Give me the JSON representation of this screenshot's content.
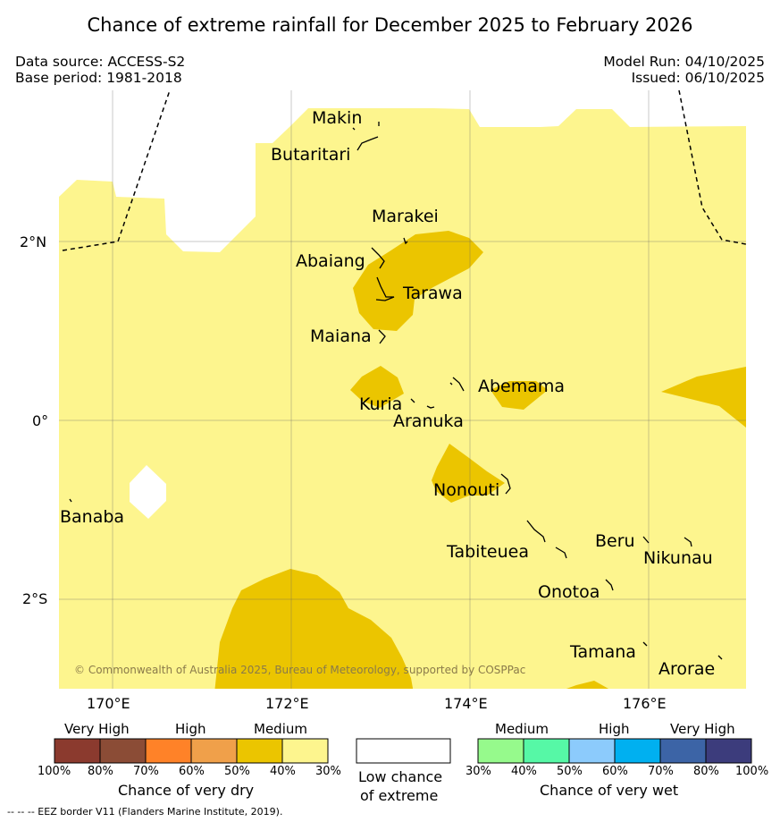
{
  "header": {
    "title": "Chance of extreme rainfall for December 2025 to February 2026",
    "data_source": "Data source: ACCESS-S2",
    "base_period": "Base period: 1981-2018",
    "model_run": "Model Run: 04/10/2025",
    "issued": "Issued: 06/10/2025"
  },
  "axes": {
    "lat_labels": [
      "2°N",
      "0°",
      "2°S"
    ],
    "lon_labels": [
      "170°E",
      "172°E",
      "174°E",
      "176°E"
    ]
  },
  "places": [
    {
      "name": "Makin"
    },
    {
      "name": "Butaritari"
    },
    {
      "name": "Marakei"
    },
    {
      "name": "Abaiang"
    },
    {
      "name": "Tarawa"
    },
    {
      "name": "Maiana"
    },
    {
      "name": "Abemama"
    },
    {
      "name": "Kuria"
    },
    {
      "name": "Aranuka"
    },
    {
      "name": "Nonouti"
    },
    {
      "name": "Banaba"
    },
    {
      "name": "Tabiteuea"
    },
    {
      "name": "Beru"
    },
    {
      "name": "Nikunau"
    },
    {
      "name": "Onotoa"
    },
    {
      "name": "Tamana"
    },
    {
      "name": "Arorae"
    }
  ],
  "copyright": "© Commonwealth of Australia 2025, Bureau of Meteorology, supported by COSPPac",
  "legend": {
    "dry": {
      "headers": [
        "Very High",
        "High",
        "Medium"
      ],
      "colors": [
        "#8b3a2e",
        "#8b4c36",
        "#ff8228",
        "#f0a04a",
        "#ebc500",
        "#fdf58e"
      ],
      "ticks": [
        "100%",
        "80%",
        "70%",
        "60%",
        "50%",
        "40%",
        "30%"
      ],
      "caption": "Chance of very dry"
    },
    "low": {
      "color": "#ffffff",
      "caption_line1": "Low chance",
      "caption_line2": "of extreme"
    },
    "wet": {
      "headers": [
        "Medium",
        "High",
        "Very High"
      ],
      "colors": [
        "#96fa8c",
        "#56f8a6",
        "#8ccbfc",
        "#00b0f0",
        "#3c64a6",
        "#3c3c7c"
      ],
      "ticks": [
        "30%",
        "40%",
        "50%",
        "60%",
        "70%",
        "80%",
        "100%"
      ],
      "caption": "Chance of very wet"
    }
  },
  "eez_note": "--  --  -- EEZ border V11 (Flanders Marine Institute, 2019)."
}
